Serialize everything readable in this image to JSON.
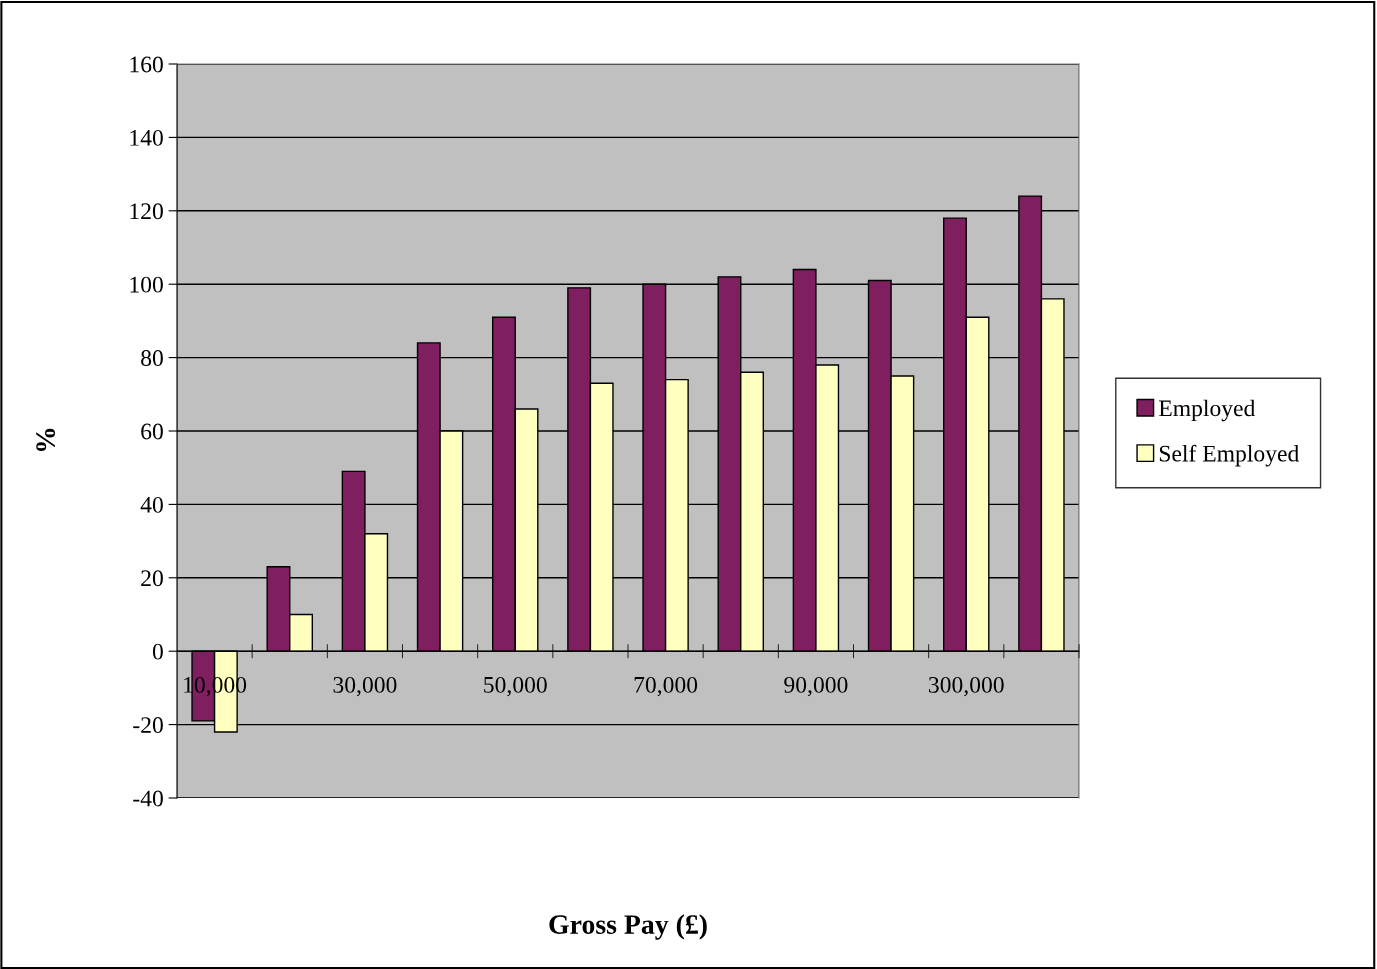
{
  "chart_data": {
    "type": "bar",
    "xlabel": "Gross Pay (£)",
    "ylabel": "%",
    "categories": [
      "10,000",
      null,
      "30,000",
      null,
      "50,000",
      null,
      "70,000",
      null,
      "90,000",
      null,
      "300,000",
      null
    ],
    "series": [
      {
        "name": "Employed",
        "color": "#7f1f5f",
        "values": [
          -19,
          23,
          49,
          84,
          91,
          99,
          100,
          102,
          104,
          101,
          118,
          124
        ]
      },
      {
        "name": "Self Employed",
        "color": "#ffffc0",
        "values": [
          -22,
          10,
          32,
          60,
          66,
          73,
          74,
          76,
          78,
          75,
          91,
          96
        ]
      }
    ],
    "ylim": [
      -40,
      160
    ],
    "yticks": [
      -40,
      -20,
      0,
      20,
      40,
      60,
      80,
      100,
      120,
      140,
      160
    ],
    "grid": "y",
    "legend": "right"
  }
}
